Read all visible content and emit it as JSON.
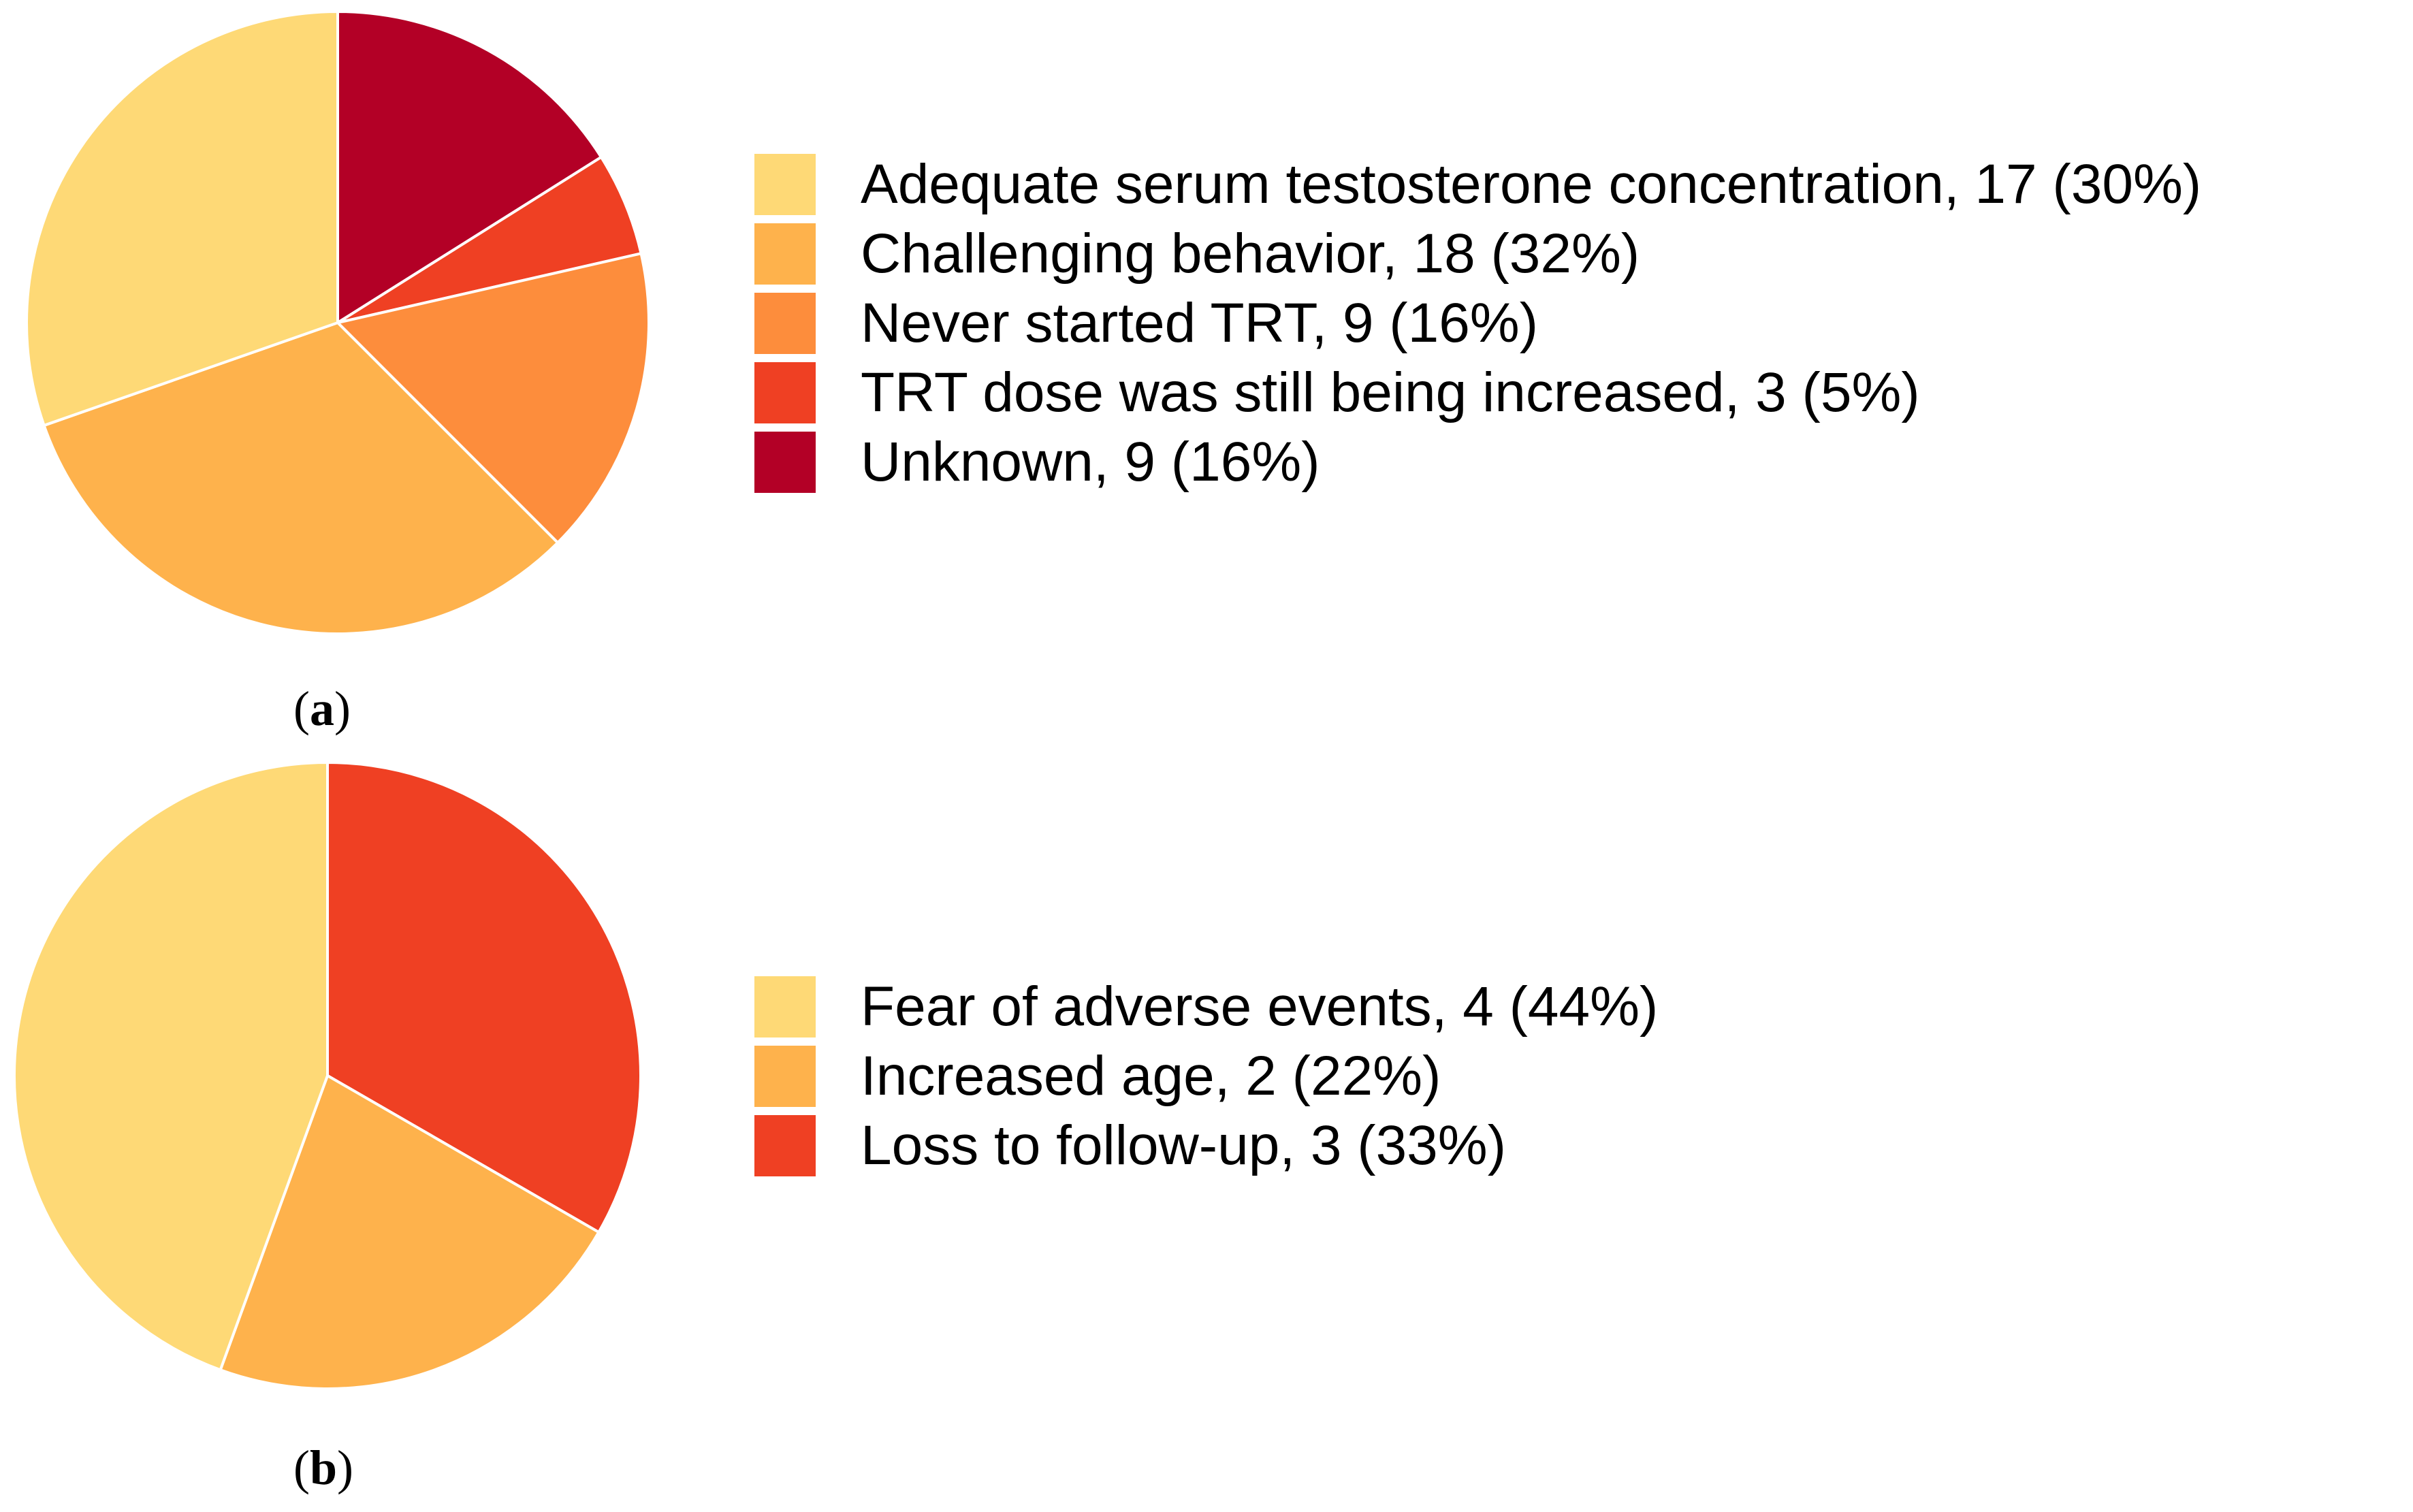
{
  "chart_data": [
    {
      "type": "pie",
      "panel_label": "a",
      "start_angle_deg": 0,
      "direction": "clockwise",
      "slices": [
        {
          "label": "Unknown",
          "value": 9,
          "percent": 16,
          "legend_text": "Unknown, 9 (16%)",
          "color": "#B30026"
        },
        {
          "label": "TRT dose was still being increased",
          "value": 3,
          "percent": 5,
          "legend_text": "TRT dose was still being increased, 3 (5%)",
          "color": "#EF4023"
        },
        {
          "label": "Never started TRT",
          "value": 9,
          "percent": 16,
          "legend_text": "Never started TRT, 9 (16%)",
          "color": "#FD8D3C"
        },
        {
          "label": "Challenging behavior",
          "value": 18,
          "percent": 32,
          "legend_text": "Challenging behavior, 18 (32%)",
          "color": "#FEB24C"
        },
        {
          "label": "Adequate serum testosterone concentration",
          "value": 17,
          "percent": 30,
          "legend_text": "Adequate serum testosterone concentration, 17 (30%)",
          "color": "#FED976"
        }
      ],
      "legend_order": [
        4,
        3,
        2,
        1,
        0
      ],
      "legend_position": "right"
    },
    {
      "type": "pie",
      "panel_label": "b",
      "start_angle_deg": 0,
      "direction": "clockwise",
      "slices": [
        {
          "label": "Loss to follow-up",
          "value": 3,
          "percent": 33,
          "legend_text": "Loss to follow-up, 3 (33%)",
          "color": "#EF4023"
        },
        {
          "label": "Increased age",
          "value": 2,
          "percent": 22,
          "legend_text": "Increased age, 2 (22%)",
          "color": "#FEB24C"
        },
        {
          "label": "Fear of adverse events",
          "value": 4,
          "percent": 44,
          "legend_text": "Fear of adverse events, 4 (44%)",
          "color": "#FED976"
        }
      ],
      "legend_order": [
        2,
        1,
        0
      ],
      "legend_position": "right"
    }
  ]
}
